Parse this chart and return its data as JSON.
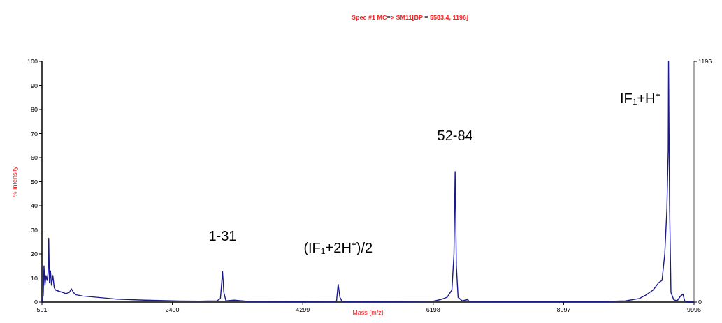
{
  "chart_data": {
    "type": "line",
    "title": "Spec #1 MC=> SM11[BP = 5583.4, 1196]",
    "xlabel": "Mass (m/z)",
    "ylabel": "% Intensity",
    "xlim": [
      501,
      9996
    ],
    "xticks": [
      501,
      2400,
      4299,
      6198,
      8097,
      9996
    ],
    "ylim": [
      0,
      100
    ],
    "yticks": [
      0,
      10,
      20,
      30,
      40,
      50,
      60,
      70,
      80,
      90,
      100
    ],
    "y2lim": [
      0,
      1196
    ],
    "y2ticks": [
      0,
      1196
    ],
    "grid": false,
    "line_style": "solid",
    "series": [
      {
        "color": "#1a1a8c",
        "x": [
          501,
          520,
          531,
          545,
          560,
          575,
          590,
          600,
          610,
          625,
          640,
          660,
          680,
          700,
          750,
          800,
          850,
          900,
          930,
          960,
          1000,
          1100,
          1300,
          1600,
          2000,
          2400,
          2800,
          3050,
          3100,
          3131,
          3150,
          3180,
          3300,
          3500,
          3800,
          4200,
          4600,
          4790,
          4814,
          4840,
          4870,
          5200,
          5800,
          6200,
          6300,
          6400,
          6470,
          6500,
          6517,
          6535,
          6560,
          6620,
          6700,
          6720,
          7200,
          8000,
          8700,
          9000,
          9200,
          9300,
          9400,
          9480,
          9530,
          9570,
          9600,
          9620,
          9625,
          9640,
          9660,
          9700,
          9750,
          9800,
          9834,
          9860,
          9900,
          9996
        ],
        "values": [
          0,
          3,
          15,
          7,
          11,
          9,
          12,
          26.5,
          8,
          13,
          7,
          11,
          6,
          5,
          4.5,
          4,
          3.5,
          4,
          5.5,
          4,
          3,
          2.5,
          2,
          1.2,
          0.8,
          0.5,
          0.4,
          0.5,
          1.5,
          12.6,
          4,
          0.5,
          0.8,
          0.3,
          0.3,
          0.2,
          0.3,
          0.3,
          7.4,
          2,
          0.3,
          0.2,
          0.3,
          0.4,
          1,
          2,
          5,
          20,
          54.2,
          15,
          2,
          0.5,
          1,
          0.3,
          0.2,
          0.2,
          0.2,
          0.5,
          1.5,
          3,
          5,
          8,
          9,
          20,
          38,
          63,
          100,
          40,
          4,
          1,
          0.5,
          2.5,
          3.3,
          0.5,
          0,
          0
        ]
      }
    ],
    "annotations": [
      {
        "text": "1-31",
        "x": 3131,
        "y": 12.6
      },
      {
        "text": "(IF₁+2H⁺)/2",
        "x": 4814,
        "y": 7.4
      },
      {
        "text": "52-84",
        "x": 6517,
        "y": 54.2
      },
      {
        "text": "IF₁+H⁺",
        "x": 9625,
        "y": 100
      }
    ]
  }
}
